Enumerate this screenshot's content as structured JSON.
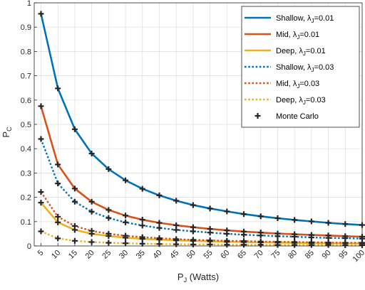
{
  "chart_data": {
    "type": "line",
    "xlabel_main": "P",
    "xlabel_sub": "J",
    "xlabel_unit": " (Watts)",
    "ylabel_main": "P",
    "ylabel_sub": "C",
    "xlim": [
      3,
      100
    ],
    "ylim": [
      0,
      1
    ],
    "grid": true,
    "legend_position": "top-right",
    "x": [
      5,
      10,
      15,
      20,
      25,
      30,
      35,
      40,
      45,
      50,
      55,
      60,
      65,
      70,
      75,
      80,
      85,
      90,
      95,
      100
    ],
    "x_ticks": [
      "5",
      "10",
      "15",
      "20",
      "25",
      "30",
      "35",
      "40",
      "45",
      "50",
      "55",
      "60",
      "65",
      "70",
      "75",
      "80",
      "85",
      "90",
      "95",
      "100"
    ],
    "y_ticks": [
      "0",
      "0.1",
      "0.2",
      "0.3",
      "0.4",
      "0.5",
      "0.6",
      "0.7",
      "0.8",
      "0.9",
      "1"
    ],
    "series": [
      {
        "name": "Shallow, λ",
        "name_sub": "J",
        "name_tail": "=0.01",
        "color": "#0072bd",
        "style": "solid",
        "values": [
          0.955,
          0.648,
          0.48,
          0.38,
          0.316,
          0.27,
          0.235,
          0.208,
          0.186,
          0.168,
          0.154,
          0.142,
          0.131,
          0.122,
          0.114,
          0.107,
          0.101,
          0.095,
          0.09,
          0.086
        ]
      },
      {
        "name": "Mid, λ",
        "name_sub": "J",
        "name_tail": "=0.01",
        "color": "#d95319",
        "style": "solid",
        "values": [
          0.575,
          0.335,
          0.236,
          0.182,
          0.148,
          0.125,
          0.108,
          0.095,
          0.085,
          0.077,
          0.07,
          0.064,
          0.059,
          0.055,
          0.051,
          0.048,
          0.045,
          0.043,
          0.04,
          0.038
        ]
      },
      {
        "name": "Deep, λ",
        "name_sub": "J",
        "name_tail": "=0.01",
        "color": "#edb120",
        "style": "solid",
        "values": [
          0.178,
          0.097,
          0.066,
          0.05,
          0.041,
          0.034,
          0.029,
          0.026,
          0.023,
          0.021,
          0.019,
          0.017,
          0.016,
          0.015,
          0.014,
          0.013,
          0.012,
          0.011,
          0.011,
          0.01
        ]
      },
      {
        "name": "Shallow, λ",
        "name_sub": "J",
        "name_tail": "=0.03",
        "color": "#0072bd",
        "style": "dotted",
        "values": [
          0.44,
          0.257,
          0.182,
          0.141,
          0.115,
          0.097,
          0.084,
          0.074,
          0.066,
          0.06,
          0.055,
          0.05,
          0.046,
          0.043,
          0.04,
          0.038,
          0.035,
          0.033,
          0.032,
          0.03
        ]
      },
      {
        "name": "Mid, λ",
        "name_sub": "J",
        "name_tail": "=0.03",
        "color": "#d95319",
        "style": "dotted",
        "values": [
          0.222,
          0.12,
          0.082,
          0.062,
          0.05,
          0.042,
          0.036,
          0.032,
          0.028,
          0.025,
          0.023,
          0.021,
          0.02,
          0.018,
          0.017,
          0.016,
          0.015,
          0.014,
          0.013,
          0.013
        ]
      },
      {
        "name": "Deep, λ",
        "name_sub": "J",
        "name_tail": "=0.03",
        "color": "#edb120",
        "style": "dotted",
        "values": [
          0.06,
          0.031,
          0.021,
          0.016,
          0.013,
          0.011,
          0.009,
          0.008,
          0.007,
          0.006,
          0.006,
          0.005,
          0.005,
          0.005,
          0.004,
          0.004,
          0.004,
          0.004,
          0.003,
          0.003
        ]
      }
    ],
    "monte_carlo": {
      "name": "Monte Carlo",
      "color": "#262626",
      "marker": "plus"
    }
  }
}
